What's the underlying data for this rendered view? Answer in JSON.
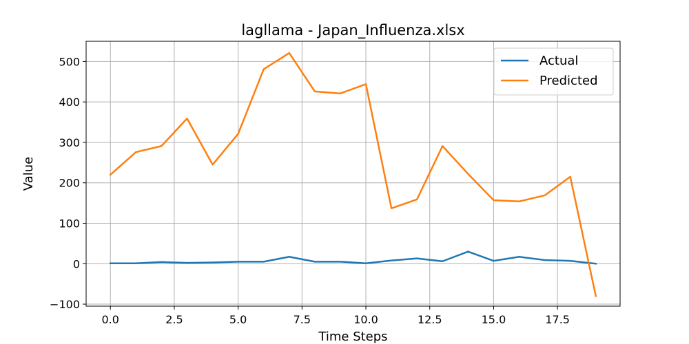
{
  "chart_data": {
    "type": "line",
    "title": "lagllama - Japan_Influenza.xlsx",
    "xlabel": "Time Steps",
    "ylabel": "Value",
    "xlim": [
      -0.95,
      19.95
    ],
    "ylim": [
      -105,
      550
    ],
    "xticks": [
      0,
      2.5,
      5,
      7.5,
      10,
      12.5,
      15,
      17.5
    ],
    "xtick_labels": [
      "0.0",
      "2.5",
      "5.0",
      "7.5",
      "10.0",
      "12.5",
      "15.0",
      "17.5"
    ],
    "yticks": [
      -100,
      0,
      100,
      200,
      300,
      400,
      500
    ],
    "ytick_labels": [
      "−100",
      "0",
      "100",
      "200",
      "300",
      "400",
      "500"
    ],
    "grid": true,
    "legend_position": "top-right",
    "x": [
      0,
      1,
      2,
      3,
      4,
      5,
      6,
      7,
      8,
      9,
      10,
      11,
      12,
      13,
      14,
      15,
      16,
      17,
      18,
      19
    ],
    "series": [
      {
        "name": "Actual",
        "color": "#1f77b4",
        "values": [
          1,
          1,
          4,
          2,
          3,
          5,
          5,
          17,
          5,
          5,
          1,
          8,
          13,
          6,
          30,
          7,
          17,
          9,
          7,
          0
        ]
      },
      {
        "name": "Predicted",
        "color": "#ff7f0e",
        "values": [
          220,
          276,
          291,
          359,
          245,
          321,
          481,
          521,
          426,
          421,
          444,
          137,
          159,
          291,
          222,
          157,
          154,
          169,
          215,
          -80
        ]
      }
    ]
  }
}
